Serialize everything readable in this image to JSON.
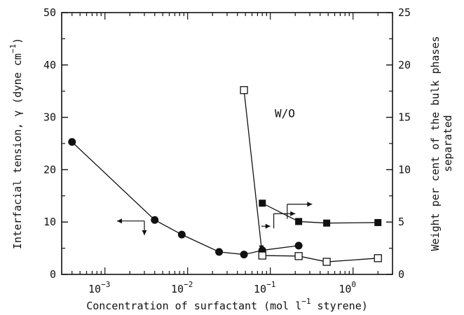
{
  "chart_data": {
    "type": "scatter",
    "xlabel_html": "Concentration of surfactant (mol l",
    "xlabel_exp": "−1",
    "xlabel_tail": " styrene)",
    "ylabel_left": "Interfacial tension, γ (dyne cm",
    "ylabel_left_exp": "−1",
    "ylabel_left_tail": ")",
    "ylabel_right_line1": "Weight per cent of the bulk phases",
    "ylabel_right_line2": "separated",
    "x_scale": "log",
    "xlim": [
      0.0003,
      3.0
    ],
    "ylim_left": [
      0,
      50
    ],
    "ylim_right": [
      0,
      25
    ],
    "x_ticks": [
      {
        "value": 0.001,
        "base": "10",
        "exp": "−3"
      },
      {
        "value": 0.01,
        "base": "10",
        "exp": "−2"
      },
      {
        "value": 0.1,
        "base": "10",
        "exp": "−1"
      },
      {
        "value": 1.0,
        "base": "10",
        "exp": "0"
      }
    ],
    "y_left_ticks": [
      "0",
      "10",
      "20",
      "30",
      "40",
      "50"
    ],
    "y_right_ticks": [
      "0",
      "5",
      "10",
      "15",
      "20",
      "25"
    ],
    "annotation": "W/O",
    "series": [
      {
        "marker": "filled-circle",
        "axis": "left",
        "points": [
          {
            "x": 0.0004,
            "y": 25.3
          },
          {
            "x": 0.004,
            "y": 10.4
          },
          {
            "x": 0.0085,
            "y": 7.6
          },
          {
            "x": 0.024,
            "y": 4.3
          },
          {
            "x": 0.048,
            "y": 3.8
          },
          {
            "x": 0.08,
            "y": 4.6
          },
          {
            "x": 0.22,
            "y": 5.5
          }
        ]
      },
      {
        "marker": "filled-square",
        "axis": "right",
        "points": [
          {
            "x": 0.08,
            "y": 6.8
          },
          {
            "x": 0.22,
            "y": 5.05
          },
          {
            "x": 0.48,
            "y": 4.9
          },
          {
            "x": 2.0,
            "y": 4.95
          }
        ]
      },
      {
        "marker": "open-square",
        "axis": "right",
        "points": [
          {
            "x": 0.048,
            "y": 17.6
          },
          {
            "x": 0.08,
            "y": 1.8
          },
          {
            "x": 0.22,
            "y": 1.75
          },
          {
            "x": 0.48,
            "y": 1.2
          },
          {
            "x": 2.0,
            "y": 1.55
          }
        ]
      }
    ]
  }
}
